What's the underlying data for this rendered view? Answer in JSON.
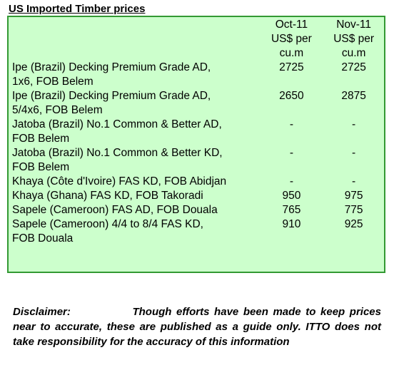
{
  "title": "US Imported Timber prices",
  "table": {
    "columns": [
      "",
      "Oct-11\nUS$ per\ncu.m",
      "Nov-11\nUS$ per\ncu.m"
    ],
    "rows": [
      {
        "product": "Ipe (Brazil) Decking Premium Grade AD,\n1x6, FOB Belem",
        "oct": "2725",
        "nov": "2725"
      },
      {
        "product": "Ipe (Brazil) Decking Premium Grade AD,\n5/4x6, FOB Belem",
        "oct": "2650",
        "nov": "2875"
      },
      {
        "product": "Jatoba (Brazil) No.1 Common & Better AD,\nFOB Belem",
        "oct": "-",
        "nov": "-"
      },
      {
        "product": "Jatoba (Brazil) No.1 Common & Better KD,\nFOB Belem",
        "oct": "-",
        "nov": "-"
      },
      {
        "product": "Khaya (Côte d'Ivoire) FAS KD, FOB Abidjan",
        "oct": "-",
        "nov": "-"
      },
      {
        "product": "Khaya (Ghana) FAS KD, FOB Takoradi",
        "oct": "950",
        "nov": "975"
      },
      {
        "product": "Sapele (Cameroon) FAS AD, FOB Douala",
        "oct": "765",
        "nov": "775"
      },
      {
        "product": "Sapele (Cameroon) 4/4 to 8/4 FAS KD,\nFOB Douala",
        "oct": "910",
        "nov": "925"
      }
    ]
  },
  "disclaimer": {
    "label": "Disclaimer:",
    "text": "Though efforts have been made to keep prices near to accurate, these are published as a guide only. ITTO does not take responsibility for the accuracy of this information"
  },
  "colors": {
    "panel_bg": "#ccffcc",
    "panel_border": "#339933"
  }
}
